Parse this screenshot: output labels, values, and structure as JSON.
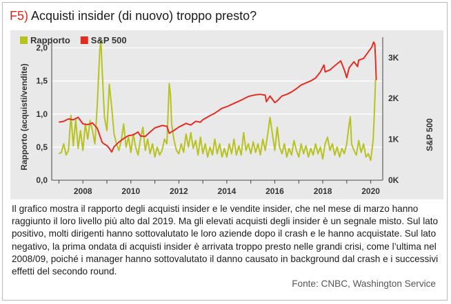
{
  "figure": {
    "tag": "F5)",
    "title": "Acquisti insider (di nuovo) troppo presto?",
    "caption": "Il grafico mostra il rapporto degli acquisti insider e le vendite insider, che nel mese di marzo hanno raggiunto il loro livello più alto dal 2019. Ma gli elevati acquisti degli insider è un segnale misto. Sul lato positivo, molti dirigenti hanno sottovalutato le loro aziende dopo il crash e le hanno acquistate. Sul lato negativo, la prima ondata di acquisti insider è arrivata troppo presto nelle grandi crisi, come l’ultima nel 2008/09, poiché i manager hanno sottovalutato il danno causato in background dal crash e i successivi effetti del secondo round.",
    "source": "Fonte: CNBC, Washington Service"
  },
  "chart_data": {
    "type": "line",
    "xlabel": "",
    "ylabel": "Rapporto (acquisti/vendite)",
    "y2label": "S&P 500",
    "xlim": [
      2006.7,
      2020.5
    ],
    "ylim": [
      0,
      2.1
    ],
    "y2lim": [
      0,
      3400
    ],
    "x_ticks": [
      2008,
      2010,
      2012,
      2014,
      2016,
      2018,
      2020
    ],
    "y_ticks": [
      "0,0",
      "0,5",
      "1,0",
      "1,5",
      "2,0"
    ],
    "y_tick_values": [
      0,
      0.5,
      1.0,
      1.5,
      2.0
    ],
    "y2_ticks": [
      "0K",
      "1K",
      "2K",
      "3K"
    ],
    "y2_tick_values": [
      0,
      1000,
      2000,
      3000
    ],
    "grid": true,
    "legend_position": "top-left",
    "series": [
      {
        "name": "Rapporto",
        "axis": "left",
        "color": "#b8c21f",
        "points": [
          [
            2007.0,
            0.4
          ],
          [
            2007.1,
            0.42
          ],
          [
            2007.2,
            0.55
          ],
          [
            2007.3,
            0.38
          ],
          [
            2007.4,
            0.45
          ],
          [
            2007.5,
            0.98
          ],
          [
            2007.6,
            0.52
          ],
          [
            2007.7,
            0.92
          ],
          [
            2007.8,
            0.48
          ],
          [
            2007.9,
            0.75
          ],
          [
            2008.0,
            0.45
          ],
          [
            2008.1,
            0.85
          ],
          [
            2008.2,
            0.62
          ],
          [
            2008.3,
            0.9
          ],
          [
            2008.4,
            0.75
          ],
          [
            2008.5,
            0.55
          ],
          [
            2008.6,
            1.15
          ],
          [
            2008.7,
            1.95
          ],
          [
            2008.75,
            2.12
          ],
          [
            2008.8,
            1.7
          ],
          [
            2008.9,
            0.95
          ],
          [
            2009.0,
            0.75
          ],
          [
            2009.1,
            1.45
          ],
          [
            2009.2,
            1.1
          ],
          [
            2009.3,
            0.7
          ],
          [
            2009.4,
            0.55
          ],
          [
            2009.5,
            0.45
          ],
          [
            2009.6,
            0.6
          ],
          [
            2009.7,
            0.85
          ],
          [
            2009.8,
            0.5
          ],
          [
            2009.9,
            0.65
          ],
          [
            2010.0,
            0.42
          ],
          [
            2010.1,
            0.7
          ],
          [
            2010.2,
            0.5
          ],
          [
            2010.3,
            0.38
          ],
          [
            2010.4,
            0.62
          ],
          [
            2010.5,
            0.8
          ],
          [
            2010.6,
            0.45
          ],
          [
            2010.7,
            0.62
          ],
          [
            2010.8,
            0.4
          ],
          [
            2010.9,
            0.55
          ],
          [
            2011.0,
            0.35
          ],
          [
            2011.1,
            0.5
          ],
          [
            2011.2,
            0.38
          ],
          [
            2011.3,
            0.45
          ],
          [
            2011.4,
            0.62
          ],
          [
            2011.5,
            0.55
          ],
          [
            2011.6,
            1.46
          ],
          [
            2011.65,
            1.3
          ],
          [
            2011.7,
            0.85
          ],
          [
            2011.8,
            0.6
          ],
          [
            2011.9,
            0.45
          ],
          [
            2012.0,
            0.4
          ],
          [
            2012.1,
            0.55
          ],
          [
            2012.2,
            0.42
          ],
          [
            2012.3,
            0.7
          ],
          [
            2012.4,
            0.5
          ],
          [
            2012.5,
            0.72
          ],
          [
            2012.6,
            0.48
          ],
          [
            2012.7,
            0.6
          ],
          [
            2012.8,
            0.38
          ],
          [
            2012.9,
            0.65
          ],
          [
            2013.0,
            0.4
          ],
          [
            2013.1,
            0.55
          ],
          [
            2013.2,
            0.35
          ],
          [
            2013.3,
            0.5
          ],
          [
            2013.4,
            0.38
          ],
          [
            2013.5,
            0.62
          ],
          [
            2013.6,
            0.4
          ],
          [
            2013.7,
            0.55
          ],
          [
            2013.8,
            0.35
          ],
          [
            2013.9,
            0.48
          ],
          [
            2014.0,
            0.35
          ],
          [
            2014.1,
            0.55
          ],
          [
            2014.2,
            0.4
          ],
          [
            2014.3,
            0.62
          ],
          [
            2014.4,
            0.38
          ],
          [
            2014.5,
            0.52
          ],
          [
            2014.6,
            0.38
          ],
          [
            2014.7,
            0.72
          ],
          [
            2014.8,
            0.45
          ],
          [
            2014.9,
            0.55
          ],
          [
            2015.0,
            0.4
          ],
          [
            2015.1,
            0.58
          ],
          [
            2015.2,
            0.42
          ],
          [
            2015.3,
            0.55
          ],
          [
            2015.4,
            0.38
          ],
          [
            2015.5,
            0.62
          ],
          [
            2015.6,
            0.45
          ],
          [
            2015.7,
            0.68
          ],
          [
            2015.8,
            0.95
          ],
          [
            2015.9,
            0.7
          ],
          [
            2016.0,
            0.45
          ],
          [
            2016.1,
            0.8
          ],
          [
            2016.2,
            0.5
          ],
          [
            2016.3,
            0.4
          ],
          [
            2016.4,
            0.55
          ],
          [
            2016.5,
            0.35
          ],
          [
            2016.6,
            0.48
          ],
          [
            2016.7,
            0.38
          ],
          [
            2016.8,
            0.6
          ],
          [
            2016.9,
            0.45
          ],
          [
            2017.0,
            0.35
          ],
          [
            2017.1,
            0.55
          ],
          [
            2017.2,
            0.4
          ],
          [
            2017.3,
            0.52
          ],
          [
            2017.4,
            0.35
          ],
          [
            2017.5,
            0.48
          ],
          [
            2017.6,
            0.38
          ],
          [
            2017.7,
            0.55
          ],
          [
            2017.8,
            0.4
          ],
          [
            2017.9,
            0.5
          ],
          [
            2018.0,
            0.32
          ],
          [
            2018.1,
            0.55
          ],
          [
            2018.2,
            0.65
          ],
          [
            2018.3,
            0.45
          ],
          [
            2018.4,
            0.55
          ],
          [
            2018.5,
            0.38
          ],
          [
            2018.6,
            0.5
          ],
          [
            2018.7,
            0.35
          ],
          [
            2018.8,
            0.48
          ],
          [
            2018.9,
            0.4
          ],
          [
            2019.0,
            0.55
          ],
          [
            2019.1,
            0.85
          ],
          [
            2019.15,
            0.96
          ],
          [
            2019.2,
            0.55
          ],
          [
            2019.3,
            0.45
          ],
          [
            2019.4,
            0.38
          ],
          [
            2019.5,
            0.6
          ],
          [
            2019.6,
            0.42
          ],
          [
            2019.7,
            0.55
          ],
          [
            2019.8,
            0.35
          ],
          [
            2019.9,
            0.4
          ],
          [
            2020.0,
            0.3
          ],
          [
            2020.05,
            0.45
          ],
          [
            2020.1,
            0.6
          ],
          [
            2020.15,
            1.0
          ],
          [
            2020.2,
            1.52
          ]
        ]
      },
      {
        "name": "S&P 500",
        "axis": "right",
        "color": "#e52b20",
        "points": [
          [
            2007.0,
            1420
          ],
          [
            2007.2,
            1440
          ],
          [
            2007.4,
            1500
          ],
          [
            2007.6,
            1480
          ],
          [
            2007.8,
            1540
          ],
          [
            2008.0,
            1380
          ],
          [
            2008.2,
            1360
          ],
          [
            2008.4,
            1400
          ],
          [
            2008.6,
            1270
          ],
          [
            2008.8,
            930
          ],
          [
            2008.9,
            880
          ],
          [
            2009.0,
            850
          ],
          [
            2009.1,
            780
          ],
          [
            2009.2,
            690
          ],
          [
            2009.3,
            820
          ],
          [
            2009.5,
            930
          ],
          [
            2009.7,
            1020
          ],
          [
            2009.9,
            1090
          ],
          [
            2010.1,
            1110
          ],
          [
            2010.3,
            1180
          ],
          [
            2010.4,
            1080
          ],
          [
            2010.6,
            1070
          ],
          [
            2010.8,
            1180
          ],
          [
            2011.0,
            1280
          ],
          [
            2011.3,
            1340
          ],
          [
            2011.5,
            1320
          ],
          [
            2011.6,
            1150
          ],
          [
            2011.8,
            1220
          ],
          [
            2012.0,
            1300
          ],
          [
            2012.3,
            1390
          ],
          [
            2012.5,
            1350
          ],
          [
            2012.7,
            1440
          ],
          [
            2012.9,
            1420
          ],
          [
            2013.0,
            1480
          ],
          [
            2013.3,
            1580
          ],
          [
            2013.5,
            1640
          ],
          [
            2013.8,
            1760
          ],
          [
            2014.0,
            1800
          ],
          [
            2014.3,
            1880
          ],
          [
            2014.6,
            1960
          ],
          [
            2014.9,
            2050
          ],
          [
            2015.2,
            2090
          ],
          [
            2015.4,
            2100
          ],
          [
            2015.6,
            2080
          ],
          [
            2015.65,
            1920
          ],
          [
            2015.8,
            2060
          ],
          [
            2016.0,
            1900
          ],
          [
            2016.1,
            1940
          ],
          [
            2016.3,
            2060
          ],
          [
            2016.5,
            2100
          ],
          [
            2016.7,
            2160
          ],
          [
            2016.9,
            2240
          ],
          [
            2017.1,
            2330
          ],
          [
            2017.3,
            2380
          ],
          [
            2017.5,
            2430
          ],
          [
            2017.7,
            2500
          ],
          [
            2017.9,
            2650
          ],
          [
            2018.05,
            2820
          ],
          [
            2018.1,
            2650
          ],
          [
            2018.3,
            2700
          ],
          [
            2018.5,
            2800
          ],
          [
            2018.75,
            2920
          ],
          [
            2018.9,
            2700
          ],
          [
            2019.0,
            2510
          ],
          [
            2019.1,
            2750
          ],
          [
            2019.3,
            2900
          ],
          [
            2019.45,
            2780
          ],
          [
            2019.5,
            2940
          ],
          [
            2019.7,
            2980
          ],
          [
            2019.9,
            3140
          ],
          [
            2020.05,
            3260
          ],
          [
            2020.12,
            3380
          ],
          [
            2020.17,
            3330
          ],
          [
            2020.2,
            2950
          ],
          [
            2020.23,
            2450
          ]
        ]
      }
    ]
  }
}
